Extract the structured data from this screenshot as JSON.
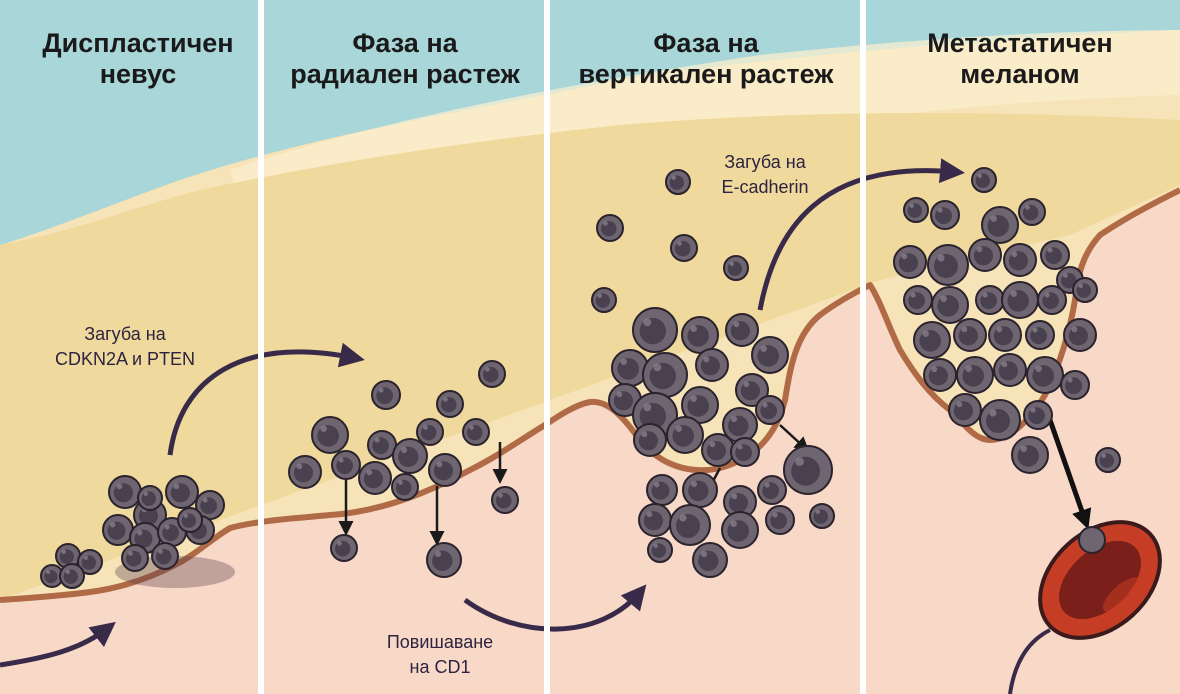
{
  "panels": [
    {
      "title": "Диспластичен\nневус"
    },
    {
      "title": "Фаза на\nрадиален растеж"
    },
    {
      "title": "Фаза на\nвертикален растеж"
    },
    {
      "title": "Метастатичен\nмеланом"
    }
  ],
  "annotations": {
    "cdkn2a": "Загуба на\nCDKN2A и PTEN",
    "ecadherin": "Загуба на\nE-cadherin",
    "cd1": "Повишаване\nна CD1"
  },
  "colors": {
    "sky": "#a9d6d8",
    "epidermis": "#f0d99c",
    "dermis": "#f8d9c7",
    "basement_membrane": "#b06a46",
    "cell_outer": "#6e6570",
    "cell_nucleus": "#4a4150",
    "arrow": "#3a2a4a",
    "vessel": "#c63d25",
    "vessel_inner": "#7a1f1a",
    "divider": "#ffffff"
  }
}
